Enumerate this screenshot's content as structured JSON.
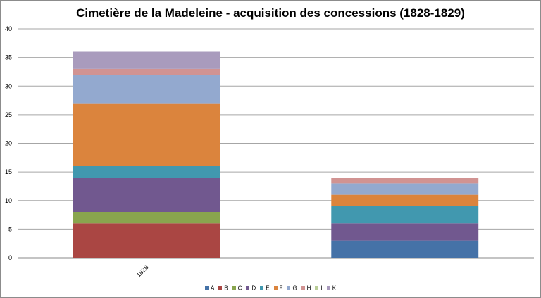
{
  "chart_data": {
    "type": "bar",
    "stacked": true,
    "title": "Cimetière de la Madeleine - acquisition des concessions (1828-1829)",
    "categories": [
      "1828",
      ""
    ],
    "ylim": [
      0,
      40
    ],
    "yticks": [
      0,
      5,
      10,
      15,
      20,
      25,
      30,
      35,
      40
    ],
    "grid": true,
    "legend_position": "bottom",
    "series": [
      {
        "name": "A",
        "color": "#4572a7",
        "values": [
          0,
          3
        ]
      },
      {
        "name": "B",
        "color": "#aa4643",
        "values": [
          6,
          0
        ]
      },
      {
        "name": "C",
        "color": "#89a54e",
        "values": [
          2,
          0
        ]
      },
      {
        "name": "D",
        "color": "#71588f",
        "values": [
          6,
          3
        ]
      },
      {
        "name": "E",
        "color": "#4198af",
        "values": [
          2,
          3
        ]
      },
      {
        "name": "F",
        "color": "#db843d",
        "values": [
          11,
          2
        ]
      },
      {
        "name": "G",
        "color": "#93a9cf",
        "values": [
          5,
          2
        ]
      },
      {
        "name": "H",
        "color": "#d19392",
        "values": [
          1,
          1
        ]
      },
      {
        "name": "I",
        "color": "#b9cd96",
        "values": [
          0,
          0
        ]
      },
      {
        "name": "K",
        "color": "#a99bbd",
        "values": [
          3,
          0
        ]
      }
    ]
  }
}
